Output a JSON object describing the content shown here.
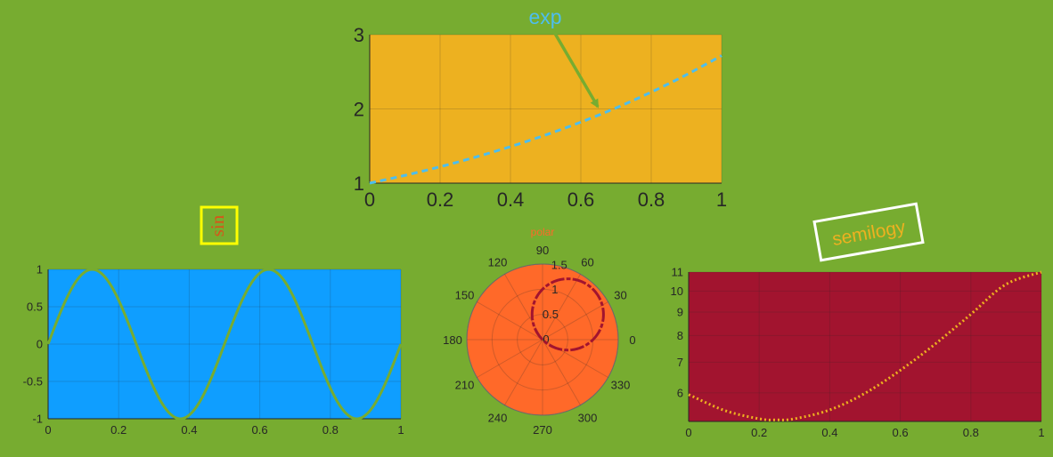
{
  "figure": {
    "background": "#77ac30"
  },
  "chart_data": [
    {
      "type": "line",
      "name": "exp",
      "title": "",
      "xlabel": "",
      "ylabel": "",
      "xlim": [
        0,
        1
      ],
      "ylim": [
        1,
        3
      ],
      "grid": true,
      "axes_color": "#edb120",
      "line_color": "#4dbeee",
      "line_style": "dashed",
      "x_ticks": [
        "0",
        "0.2",
        "0.4",
        "0.6",
        "0.8",
        "1"
      ],
      "y_ticks": [
        "1",
        "2",
        "3"
      ],
      "x": [
        0,
        0.1,
        0.2,
        0.3,
        0.4,
        0.5,
        0.6,
        0.7,
        0.8,
        0.9,
        1.0
      ],
      "y": [
        1.0,
        1.105,
        1.221,
        1.35,
        1.492,
        1.649,
        1.822,
        2.014,
        2.226,
        2.46,
        2.718
      ],
      "annotation": {
        "text": "exp",
        "color": "#4dbeee",
        "arrow_color": "#77ac30",
        "points_to": [
          0.65,
          1.92
        ]
      }
    },
    {
      "type": "line",
      "name": "sin",
      "title": "sin",
      "title_color": "#d95319",
      "title_box_color": "#ffff00",
      "xlabel": "",
      "ylabel": "",
      "xlim": [
        0,
        1
      ],
      "ylim": [
        -1,
        1
      ],
      "grid": true,
      "axes_color": "#0f9eff",
      "line_color": "#77ac30",
      "line_style": "solid",
      "x_ticks": [
        "0",
        "0.2",
        "0.4",
        "0.6",
        "0.8",
        "1"
      ],
      "y_ticks": [
        "-1",
        "-0.5",
        "0",
        "0.5",
        "1"
      ],
      "function": "y = sin(4*pi*x)",
      "x": [
        0,
        0.125,
        0.25,
        0.375,
        0.5,
        0.625,
        0.75,
        0.875,
        1.0
      ],
      "y": [
        0,
        1,
        0,
        -1,
        0,
        1,
        0,
        -1,
        0
      ]
    },
    {
      "type": "polar",
      "name": "polar",
      "title": "polar",
      "title_color": "#ff6929",
      "axes_color": "#ff6929",
      "line_color": "#a2142f",
      "line_style": "dashdot",
      "rlim": [
        0,
        1.5
      ],
      "r_ticks": [
        "0",
        "0.5",
        "1",
        "1.5"
      ],
      "theta_ticks": [
        "0",
        "30",
        "60",
        "90",
        "120",
        "150",
        "180",
        "210",
        "240",
        "270",
        "300",
        "330"
      ],
      "function": "r = sin(theta) + cos(theta)",
      "theta_deg": [
        0,
        15,
        30,
        45,
        60,
        75,
        90
      ],
      "r": [
        1.0,
        1.225,
        1.366,
        1.414,
        1.366,
        1.225,
        1.0
      ]
    },
    {
      "type": "line",
      "name": "semilogy",
      "title": "semilogy",
      "title_color": "#edb120",
      "title_box_color": "#ffffff",
      "title_rotation_deg": -10,
      "xlabel": "",
      "ylabel": "",
      "xlim": [
        0,
        1
      ],
      "ylim": [
        5.2,
        11
      ],
      "y_scale": "log",
      "grid": true,
      "axes_color": "#a2142f",
      "line_color": "#edb120",
      "line_style": "dotted",
      "x_ticks": [
        "0",
        "0.2",
        "0.4",
        "0.6",
        "0.8",
        "1"
      ],
      "y_ticks": [
        "6",
        "7",
        "8",
        "9",
        "10",
        "11"
      ],
      "x": [
        0,
        0.1,
        0.2,
        0.25,
        0.3,
        0.4,
        0.5,
        0.6,
        0.7,
        0.8,
        0.9,
        1.0
      ],
      "y": [
        5.95,
        5.5,
        5.27,
        5.24,
        5.27,
        5.51,
        5.99,
        6.72,
        7.68,
        8.9,
        10.35,
        11.0
      ]
    }
  ]
}
